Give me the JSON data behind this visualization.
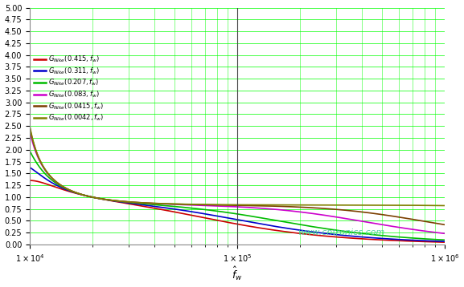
{
  "title": "",
  "xlabel": "$\\hat{f}_w$",
  "ylabel": "",
  "xmin": 10000,
  "xmax": 1000000,
  "ymin": 0,
  "ymax": 5,
  "yticks": [
    0,
    0.25,
    0.5,
    0.75,
    1.0,
    1.25,
    1.5,
    1.75,
    2.0,
    2.25,
    2.5,
    2.75,
    3.0,
    3.25,
    3.5,
    3.75,
    4.0,
    4.25,
    4.5,
    4.75,
    5.0
  ],
  "background_color": "#ffffff",
  "grid_color": "#00ff00",
  "grid_alpha": 0.85,
  "watermark": "www.cntronics.com",
  "watermark_color": "#44cc99",
  "line_colors": [
    "#cc0000",
    "#0000cc",
    "#00bb00",
    "#cc00cc",
    "#7b3f00",
    "#808000"
  ],
  "Q_values": [
    0.415,
    0.311,
    0.207,
    0.083,
    0.0415,
    0.0042
  ],
  "Q_labels": [
    "0.415",
    "0.311",
    "0.207",
    "0.083",
    "0.0415",
    "0.0042"
  ],
  "fr": 20000,
  "Ln": 5.0,
  "figsize": [
    5.77,
    3.58
  ],
  "dpi": 100
}
